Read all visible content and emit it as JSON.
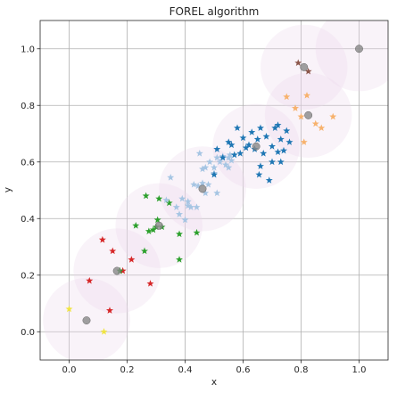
{
  "chart_data": {
    "type": "scatter",
    "title": "FOREL algorithm",
    "xlabel": "x",
    "ylabel": "y",
    "xlim": [
      -0.1,
      1.1
    ],
    "ylim": [
      -0.1,
      1.1
    ],
    "xticks": [
      "0.0",
      "0.2",
      "0.4",
      "0.6",
      "0.8",
      "1.0"
    ],
    "yticks": [
      "0.0",
      "0.2",
      "0.4",
      "0.6",
      "0.8",
      "1.0"
    ],
    "grid": true,
    "radius": 0.15,
    "circle_fill": "#ead7ea",
    "center_color": "#888888",
    "centers": [
      {
        "x": 0.06,
        "y": 0.04
      },
      {
        "x": 0.165,
        "y": 0.215
      },
      {
        "x": 0.31,
        "y": 0.375
      },
      {
        "x": 0.46,
        "y": 0.505
      },
      {
        "x": 0.645,
        "y": 0.655
      },
      {
        "x": 0.825,
        "y": 0.765
      },
      {
        "x": 0.81,
        "y": 0.935
      },
      {
        "x": 1.0,
        "y": 1.0
      }
    ],
    "series": [
      {
        "color": "#f0e442",
        "points": [
          [
            0.0,
            0.08
          ],
          [
            0.12,
            0.0
          ]
        ]
      },
      {
        "color": "#d62728",
        "points": [
          [
            0.07,
            0.18
          ],
          [
            0.115,
            0.325
          ],
          [
            0.15,
            0.285
          ],
          [
            0.185,
            0.215
          ],
          [
            0.215,
            0.255
          ],
          [
            0.28,
            0.17
          ],
          [
            0.14,
            0.075
          ]
        ]
      },
      {
        "color": "#2ca02c",
        "points": [
          [
            0.175,
            0.215
          ],
          [
            0.23,
            0.375
          ],
          [
            0.265,
            0.48
          ],
          [
            0.26,
            0.285
          ],
          [
            0.29,
            0.36
          ],
          [
            0.3,
            0.37
          ],
          [
            0.31,
            0.47
          ],
          [
            0.32,
            0.37
          ],
          [
            0.305,
            0.395
          ],
          [
            0.345,
            0.455
          ],
          [
            0.38,
            0.255
          ],
          [
            0.44,
            0.35
          ],
          [
            0.38,
            0.345
          ],
          [
            0.275,
            0.355
          ]
        ]
      },
      {
        "color": "#a6c5e3",
        "points": [
          [
            0.35,
            0.545
          ],
          [
            0.37,
            0.44
          ],
          [
            0.38,
            0.415
          ],
          [
            0.39,
            0.47
          ],
          [
            0.41,
            0.445
          ],
          [
            0.42,
            0.44
          ],
          [
            0.43,
            0.52
          ],
          [
            0.445,
            0.515
          ],
          [
            0.45,
            0.63
          ],
          [
            0.46,
            0.575
          ],
          [
            0.47,
            0.58
          ],
          [
            0.48,
            0.52
          ],
          [
            0.5,
            0.56
          ],
          [
            0.51,
            0.49
          ],
          [
            0.52,
            0.6
          ],
          [
            0.53,
            0.62
          ],
          [
            0.54,
            0.59
          ],
          [
            0.55,
            0.615
          ],
          [
            0.56,
            0.605
          ],
          [
            0.41,
            0.46
          ],
          [
            0.44,
            0.44
          ],
          [
            0.485,
            0.6
          ],
          [
            0.51,
            0.615
          ],
          [
            0.55,
            0.58
          ],
          [
            0.4,
            0.395
          ],
          [
            0.335,
            0.465
          ],
          [
            0.555,
            0.625
          ],
          [
            0.5,
            0.58
          ],
          [
            0.47,
            0.49
          ],
          [
            0.46,
            0.525
          ]
        ]
      },
      {
        "color": "#1f77b4",
        "points": [
          [
            0.5,
            0.555
          ],
          [
            0.51,
            0.645
          ],
          [
            0.53,
            0.615
          ],
          [
            0.55,
            0.67
          ],
          [
            0.56,
            0.66
          ],
          [
            0.57,
            0.625
          ],
          [
            0.58,
            0.72
          ],
          [
            0.6,
            0.685
          ],
          [
            0.61,
            0.65
          ],
          [
            0.62,
            0.66
          ],
          [
            0.63,
            0.705
          ],
          [
            0.64,
            0.645
          ],
          [
            0.65,
            0.68
          ],
          [
            0.655,
            0.555
          ],
          [
            0.66,
            0.585
          ],
          [
            0.67,
            0.63
          ],
          [
            0.68,
            0.69
          ],
          [
            0.69,
            0.535
          ],
          [
            0.7,
            0.6
          ],
          [
            0.71,
            0.72
          ],
          [
            0.72,
            0.73
          ],
          [
            0.73,
            0.68
          ],
          [
            0.74,
            0.64
          ],
          [
            0.75,
            0.71
          ],
          [
            0.76,
            0.67
          ],
          [
            0.72,
            0.635
          ],
          [
            0.66,
            0.72
          ],
          [
            0.7,
            0.655
          ],
          [
            0.59,
            0.63
          ],
          [
            0.73,
            0.6
          ]
        ]
      },
      {
        "color": "#f7b26d",
        "points": [
          [
            0.75,
            0.83
          ],
          [
            0.78,
            0.79
          ],
          [
            0.8,
            0.76
          ],
          [
            0.81,
            0.67
          ],
          [
            0.82,
            0.835
          ],
          [
            0.85,
            0.735
          ],
          [
            0.87,
            0.72
          ],
          [
            0.91,
            0.76
          ]
        ]
      },
      {
        "color": "#8c564b",
        "points": [
          [
            0.79,
            0.95
          ],
          [
            0.825,
            0.92
          ]
        ]
      }
    ]
  }
}
